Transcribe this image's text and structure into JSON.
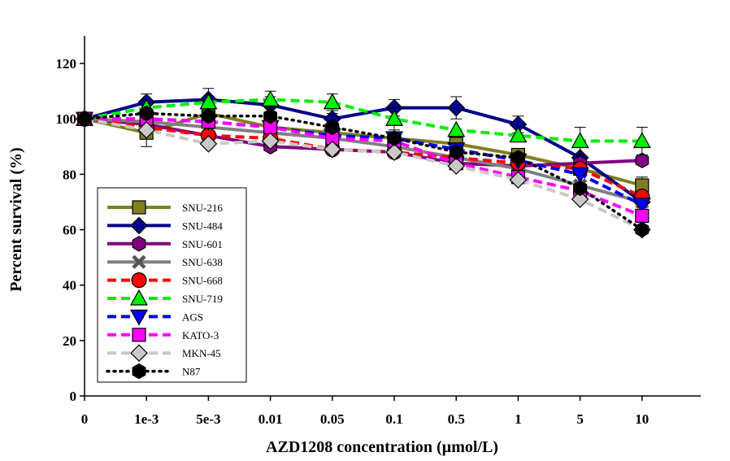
{
  "chart_data": {
    "type": "line",
    "title": "",
    "xlabel": "AZD1208 concentration (µmol/L)",
    "ylabel": "Percent survival (%)",
    "categories": [
      "0",
      "1e-3",
      "5e-3",
      "0.01",
      "0.05",
      "0.1",
      "0.5",
      "1",
      "5",
      "10"
    ],
    "ylim": [
      0,
      130
    ],
    "yticks": [
      "0",
      "20",
      "40",
      "60",
      "80",
      "100",
      "120"
    ],
    "grid": false,
    "legend_position": "lower-left",
    "series": [
      {
        "name": "SNU-216",
        "color": "#7f7f1f",
        "dash": "solid",
        "marker": "square",
        "values": [
          100,
          95,
          102,
          97,
          95,
          93,
          91,
          87,
          82,
          76
        ],
        "errors": [
          0,
          5,
          0,
          0,
          0,
          0,
          0,
          0,
          0,
          3
        ]
      },
      {
        "name": "SNU-484",
        "color": "#00008b",
        "dash": "solid",
        "marker": "diamond",
        "values": [
          100,
          106,
          107,
          105,
          100,
          104,
          104,
          98,
          86,
          70
        ],
        "errors": [
          0,
          3,
          4,
          3,
          2,
          3,
          4,
          3,
          0,
          0
        ]
      },
      {
        "name": "SNU-601",
        "color": "#800080",
        "dash": "solid",
        "marker": "hexagon",
        "values": [
          100,
          98,
          94,
          90,
          89,
          88,
          84,
          83,
          84,
          85
        ],
        "errors": [
          0,
          0,
          0,
          0,
          0,
          0,
          0,
          0,
          0,
          0
        ]
      },
      {
        "name": "SNU-638",
        "color": "#808080",
        "dash": "solid",
        "marker": "x",
        "values": [
          100,
          99,
          97,
          95,
          93,
          90,
          86,
          82,
          76,
          70
        ],
        "errors": [
          0,
          0,
          0,
          0,
          0,
          0,
          0,
          0,
          0,
          0
        ]
      },
      {
        "name": "SNU-668",
        "color": "#ff0000",
        "dash": "dashed",
        "marker": "circle",
        "values": [
          100,
          97,
          94,
          93,
          89,
          88,
          86,
          84,
          82,
          72
        ],
        "errors": [
          0,
          0,
          0,
          0,
          0,
          0,
          0,
          0,
          0,
          0
        ]
      },
      {
        "name": "SNU-719",
        "color": "#00ee00",
        "dash": "dashed",
        "marker": "triangle-up",
        "values": [
          100,
          104,
          106,
          107,
          106,
          100,
          96,
          94,
          92,
          92
        ],
        "errors": [
          0,
          0,
          0,
          3,
          3,
          4,
          0,
          0,
          5,
          5
        ]
      },
      {
        "name": "AGS",
        "color": "#0000ff",
        "dash": "dashed",
        "marker": "triangle-down",
        "values": [
          100,
          100,
          99,
          97,
          94,
          93,
          89,
          85,
          80,
          69
        ],
        "errors": [
          0,
          0,
          0,
          0,
          0,
          0,
          0,
          0,
          0,
          0
        ]
      },
      {
        "name": "KATO-3",
        "color": "#ff00ff",
        "dash": "dashed",
        "marker": "square",
        "values": [
          100,
          100,
          99,
          97,
          93,
          92,
          84,
          79,
          74,
          65
        ],
        "errors": [
          0,
          0,
          0,
          0,
          0,
          0,
          0,
          0,
          0,
          0
        ]
      },
      {
        "name": "MKN-45",
        "color": "#c8c8c8",
        "dash": "dashed",
        "marker": "diamond",
        "values": [
          100,
          96,
          91,
          92,
          89,
          88,
          83,
          78,
          71,
          60
        ],
        "errors": [
          0,
          0,
          0,
          0,
          0,
          0,
          0,
          0,
          0,
          0
        ]
      },
      {
        "name": "N87",
        "color": "#000000",
        "dash": "dotted",
        "marker": "hexagon",
        "values": [
          100,
          102,
          101,
          101,
          97,
          93,
          88,
          86,
          75,
          60
        ],
        "errors": [
          0,
          0,
          0,
          0,
          0,
          0,
          0,
          0,
          0,
          0
        ]
      }
    ]
  }
}
